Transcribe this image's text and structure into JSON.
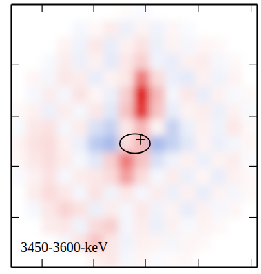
{
  "chart_data": {
    "type": "heatmap",
    "title": "3450-3600-keV",
    "x": [
      3.125,
      9.375,
      15.625,
      21.875,
      28.125,
      34.375,
      40.625,
      46.875,
      53.125,
      59.375,
      65.625,
      71.875,
      78.125,
      84.375,
      90.625,
      96.875
    ],
    "y": [
      96.875,
      90.625,
      84.375,
      78.125,
      71.875,
      65.625,
      59.375,
      53.125,
      46.875,
      40.625,
      34.375,
      28.125,
      21.875,
      15.625,
      9.375,
      3.125
    ],
    "cells": [
      [
        null,
        null,
        null,
        null,
        null,
        null,
        null,
        0.02,
        -0.03,
        null,
        null,
        null,
        null,
        null,
        null,
        null
      ],
      [
        null,
        null,
        null,
        null,
        -0.05,
        0.03,
        0.08,
        -0.1,
        0.05,
        -0.08,
        0.04,
        -0.03,
        null,
        null,
        null,
        null
      ],
      [
        null,
        null,
        null,
        0.05,
        -0.08,
        0.1,
        -0.12,
        0.06,
        0.12,
        -0.1,
        0.05,
        -0.06,
        0.04,
        0.03,
        null,
        null
      ],
      [
        null,
        null,
        -0.04,
        0.08,
        -0.1,
        0.06,
        -0.14,
        0.1,
        0.2,
        -0.08,
        -0.12,
        0.06,
        0.08,
        -0.05,
        0.03,
        null
      ],
      [
        null,
        0.04,
        -0.06,
        0.1,
        0.08,
        -0.12,
        0.05,
        0.1,
        0.55,
        0.15,
        -0.1,
        -0.14,
        0.06,
        -0.08,
        0.05,
        null
      ],
      [
        null,
        -0.05,
        0.08,
        -0.06,
        0.12,
        0.04,
        -0.1,
        0.2,
        0.95,
        0.3,
        -0.06,
        0.1,
        -0.12,
        0.06,
        -0.04,
        0.03
      ],
      [
        0.03,
        0.06,
        -0.1,
        0.08,
        -0.05,
        0.1,
        -0.15,
        0.25,
        0.85,
        0.25,
        -0.12,
        0.05,
        0.08,
        -0.1,
        0.06,
        -0.04
      ],
      [
        -0.04,
        0.1,
        0.12,
        -0.06,
        0.08,
        -0.2,
        -0.3,
        0.1,
        0.3,
        0.05,
        -0.3,
        -0.1,
        0.06,
        -0.08,
        0.1,
        0.03
      ],
      [
        0.05,
        0.12,
        0.15,
        0.06,
        -0.1,
        -0.35,
        -0.45,
        0.15,
        0.3,
        -0.45,
        -0.3,
        -0.15,
        0.05,
        -0.1,
        -0.06,
        0.04
      ],
      [
        0.04,
        0.1,
        0.14,
        0.08,
        -0.05,
        -0.15,
        0.2,
        0.55,
        0.25,
        -0.2,
        -0.08,
        0.06,
        -0.1,
        0.05,
        0.08,
        -0.03
      ],
      [
        -0.03,
        0.06,
        0.12,
        -0.05,
        0.08,
        0.1,
        0.15,
        0.4,
        0.15,
        -0.05,
        0.08,
        -0.1,
        0.04,
        -0.12,
        0.06,
        0.03
      ],
      [
        null,
        0.08,
        0.15,
        0.1,
        -0.06,
        0.12,
        -0.08,
        0.1,
        -0.06,
        0.08,
        -0.1,
        0.06,
        -0.12,
        0.05,
        -0.06,
        0.03
      ],
      [
        null,
        -0.05,
        0.1,
        0.18,
        0.12,
        -0.1,
        0.08,
        -0.06,
        0.1,
        -0.08,
        0.05,
        -0.12,
        0.06,
        -0.05,
        0.04,
        null
      ],
      [
        null,
        null,
        0.08,
        0.1,
        -0.08,
        0.15,
        0.2,
        -0.06,
        0.08,
        -0.1,
        0.06,
        -0.04,
        0.05,
        0.03,
        null,
        null
      ],
      [
        null,
        null,
        null,
        -0.06,
        0.12,
        0.25,
        0.1,
        -0.08,
        0.06,
        0.05,
        -0.06,
        0.04,
        0.03,
        null,
        null,
        null
      ],
      [
        null,
        null,
        null,
        null,
        null,
        0.06,
        0.1,
        -0.05,
        0.04,
        -0.03,
        0.02,
        0.03,
        null,
        null,
        null,
        null
      ]
    ],
    "source": {
      "x": 52.7,
      "y": 48.5
    },
    "ellipse": {
      "x": 50.4,
      "y": 47.0,
      "rx": 6.2,
      "ry": 3.7
    },
    "xlim": [
      0,
      100
    ],
    "ylim": [
      0,
      100
    ],
    "xticks": [
      12.5,
      33.5,
      54.5,
      76,
      97.5
    ],
    "yticks": [
      19.1,
      38.5,
      57.5,
      77
    ],
    "tick_labels": false
  }
}
